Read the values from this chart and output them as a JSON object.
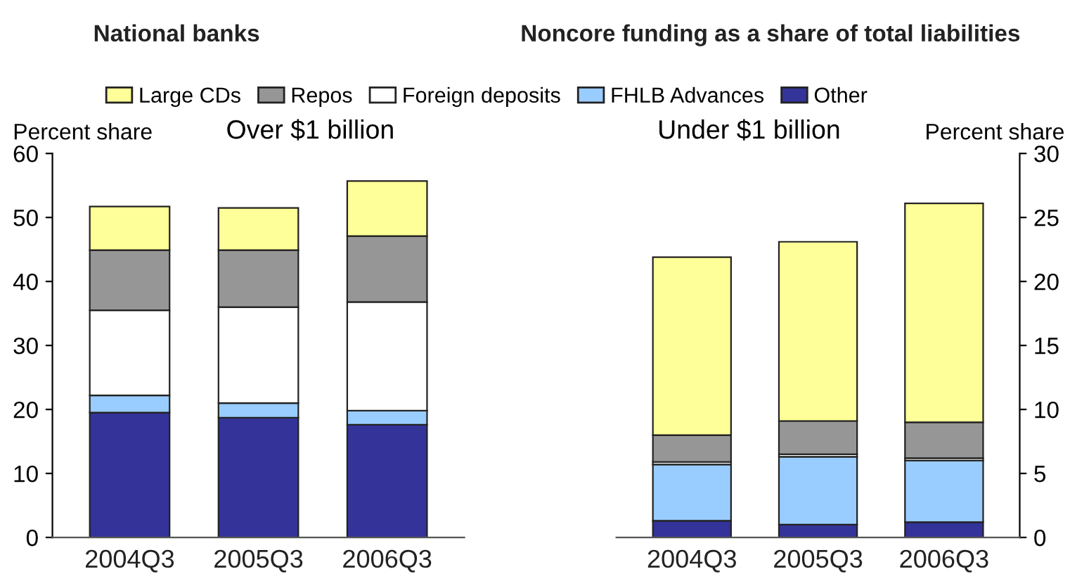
{
  "chart_data": [
    {
      "type": "bar",
      "stacked": true,
      "title": "Over $1 billion",
      "ylabel": "Percent share",
      "annotations": [
        "National banks",
        "Noncore funding as a share of total liabilities"
      ],
      "legend": "top",
      "grid": false,
      "categories": [
        "2004Q3",
        "2005Q3",
        "2006Q3"
      ],
      "ylim": [
        0,
        60
      ],
      "yticks": [
        0,
        10,
        20,
        30,
        40,
        50,
        60
      ],
      "series": [
        {
          "name": "Other",
          "color": "#333399",
          "values": [
            19.5,
            18.7,
            17.6
          ]
        },
        {
          "name": "FHLB Advances",
          "color": "#99ccff",
          "values": [
            2.7,
            2.3,
            2.2
          ]
        },
        {
          "name": "Foreign deposits",
          "color": "#ffffff",
          "values": [
            13.3,
            15.0,
            17.0
          ]
        },
        {
          "name": "Repos",
          "color": "#969696",
          "values": [
            9.4,
            8.9,
            10.3
          ]
        },
        {
          "name": "Large CDs",
          "color": "#ffff99",
          "values": [
            6.8,
            6.6,
            8.6
          ]
        }
      ]
    },
    {
      "type": "bar",
      "stacked": true,
      "title": "Under $1 billion",
      "ylabel": "Percent share",
      "legend": "top",
      "grid": false,
      "categories": [
        "2004Q3",
        "2005Q3",
        "2006Q3"
      ],
      "ylim": [
        0,
        30
      ],
      "yticks": [
        0,
        5,
        10,
        15,
        20,
        25,
        30
      ],
      "series": [
        {
          "color": "#333399",
          "values": [
            1.3,
            1.0,
            1.2
          ]
        },
        {
          "color": "#99ccff",
          "values": [
            4.4,
            5.3,
            4.8
          ]
        },
        {
          "color": "#ffffff",
          "values": [
            0.2,
            0.2,
            0.2
          ]
        },
        {
          "color": "#969696",
          "values": [
            2.1,
            2.6,
            2.8
          ]
        },
        {
          "color": "#ffff99",
          "values": [
            13.9,
            14.0,
            17.1
          ]
        }
      ]
    }
  ]
}
